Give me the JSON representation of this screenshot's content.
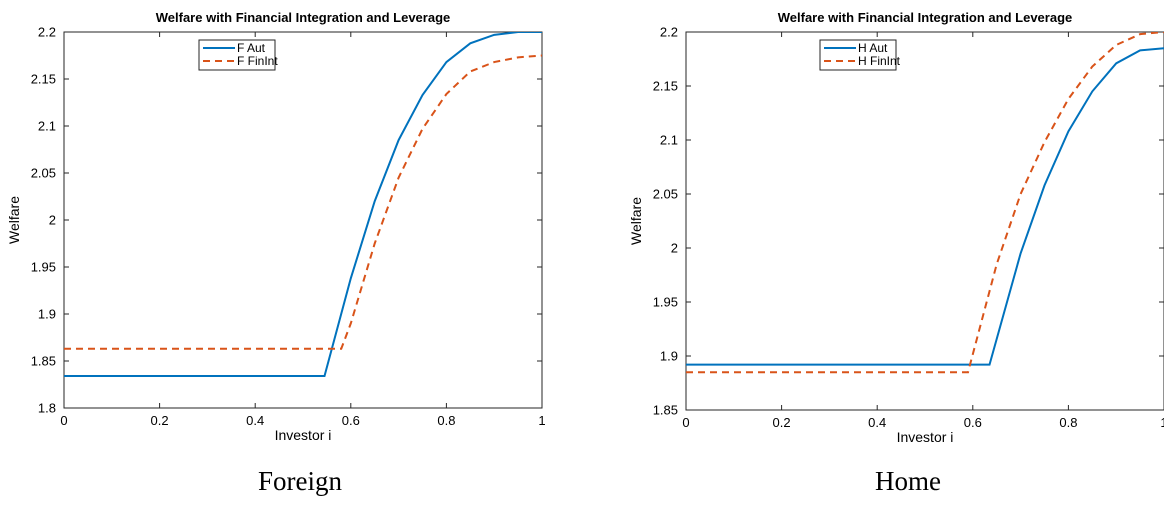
{
  "chart_data": [
    {
      "type": "line",
      "title": "Welfare with Financial Integration and Leverage",
      "xlabel": "Investor i",
      "ylabel": "Welfare",
      "caption": "Foreign",
      "xlim": [
        0,
        1
      ],
      "ylim": [
        1.8,
        2.2
      ],
      "xticks": [
        "0",
        "0.2",
        "0.4",
        "0.6",
        "0.8",
        "1"
      ],
      "yticks": [
        "1.8",
        "1.85",
        "1.9",
        "1.95",
        "2",
        "2.05",
        "2.1",
        "2.15",
        "2.2"
      ],
      "legend_position": "top-center",
      "series": [
        {
          "name": "F Aut",
          "color": "#0072BD",
          "style": "solid",
          "x": [
            0,
            0.1,
            0.2,
            0.3,
            0.4,
            0.5,
            0.545,
            0.6,
            0.65,
            0.7,
            0.75,
            0.8,
            0.85,
            0.9,
            0.95,
            1.0
          ],
          "y": [
            1.834,
            1.834,
            1.834,
            1.834,
            1.834,
            1.834,
            1.834,
            1.938,
            2.02,
            2.085,
            2.133,
            2.168,
            2.188,
            2.197,
            2.2,
            2.2
          ]
        },
        {
          "name": "F FinInt",
          "color": "#D95319",
          "style": "dashed",
          "x": [
            0,
            0.1,
            0.2,
            0.3,
            0.4,
            0.5,
            0.58,
            0.6,
            0.65,
            0.7,
            0.75,
            0.8,
            0.85,
            0.9,
            0.95,
            1.0
          ],
          "y": [
            1.863,
            1.863,
            1.863,
            1.863,
            1.863,
            1.863,
            1.863,
            1.89,
            1.975,
            2.045,
            2.097,
            2.134,
            2.158,
            2.168,
            2.173,
            2.175
          ]
        }
      ]
    },
    {
      "type": "line",
      "title": "Welfare with Financial Integration and Leverage",
      "xlabel": "Investor i",
      "ylabel": "Welfare",
      "caption": "Home",
      "xlim": [
        0,
        1
      ],
      "ylim": [
        1.85,
        2.2
      ],
      "xticks": [
        "0",
        "0.2",
        "0.4",
        "0.6",
        "0.8",
        "1"
      ],
      "yticks": [
        "1.85",
        "1.9",
        "1.95",
        "2",
        "2.05",
        "2.1",
        "2.15",
        "2.2"
      ],
      "legend_position": "top-center",
      "series": [
        {
          "name": "H Aut",
          "color": "#0072BD",
          "style": "solid",
          "x": [
            0,
            0.1,
            0.2,
            0.3,
            0.4,
            0.5,
            0.6,
            0.635,
            0.7,
            0.75,
            0.8,
            0.85,
            0.9,
            0.95,
            1.0
          ],
          "y": [
            1.892,
            1.892,
            1.892,
            1.892,
            1.892,
            1.892,
            1.892,
            1.892,
            1.995,
            2.058,
            2.108,
            2.145,
            2.171,
            2.183,
            2.185
          ]
        },
        {
          "name": "H FinInt",
          "color": "#D95319",
          "style": "dashed",
          "x": [
            0,
            0.1,
            0.2,
            0.3,
            0.4,
            0.5,
            0.59,
            0.65,
            0.7,
            0.75,
            0.8,
            0.85,
            0.9,
            0.95,
            1.0
          ],
          "y": [
            1.885,
            1.885,
            1.885,
            1.885,
            1.885,
            1.885,
            1.885,
            1.985,
            2.05,
            2.098,
            2.138,
            2.168,
            2.188,
            2.198,
            2.2
          ]
        }
      ]
    }
  ]
}
